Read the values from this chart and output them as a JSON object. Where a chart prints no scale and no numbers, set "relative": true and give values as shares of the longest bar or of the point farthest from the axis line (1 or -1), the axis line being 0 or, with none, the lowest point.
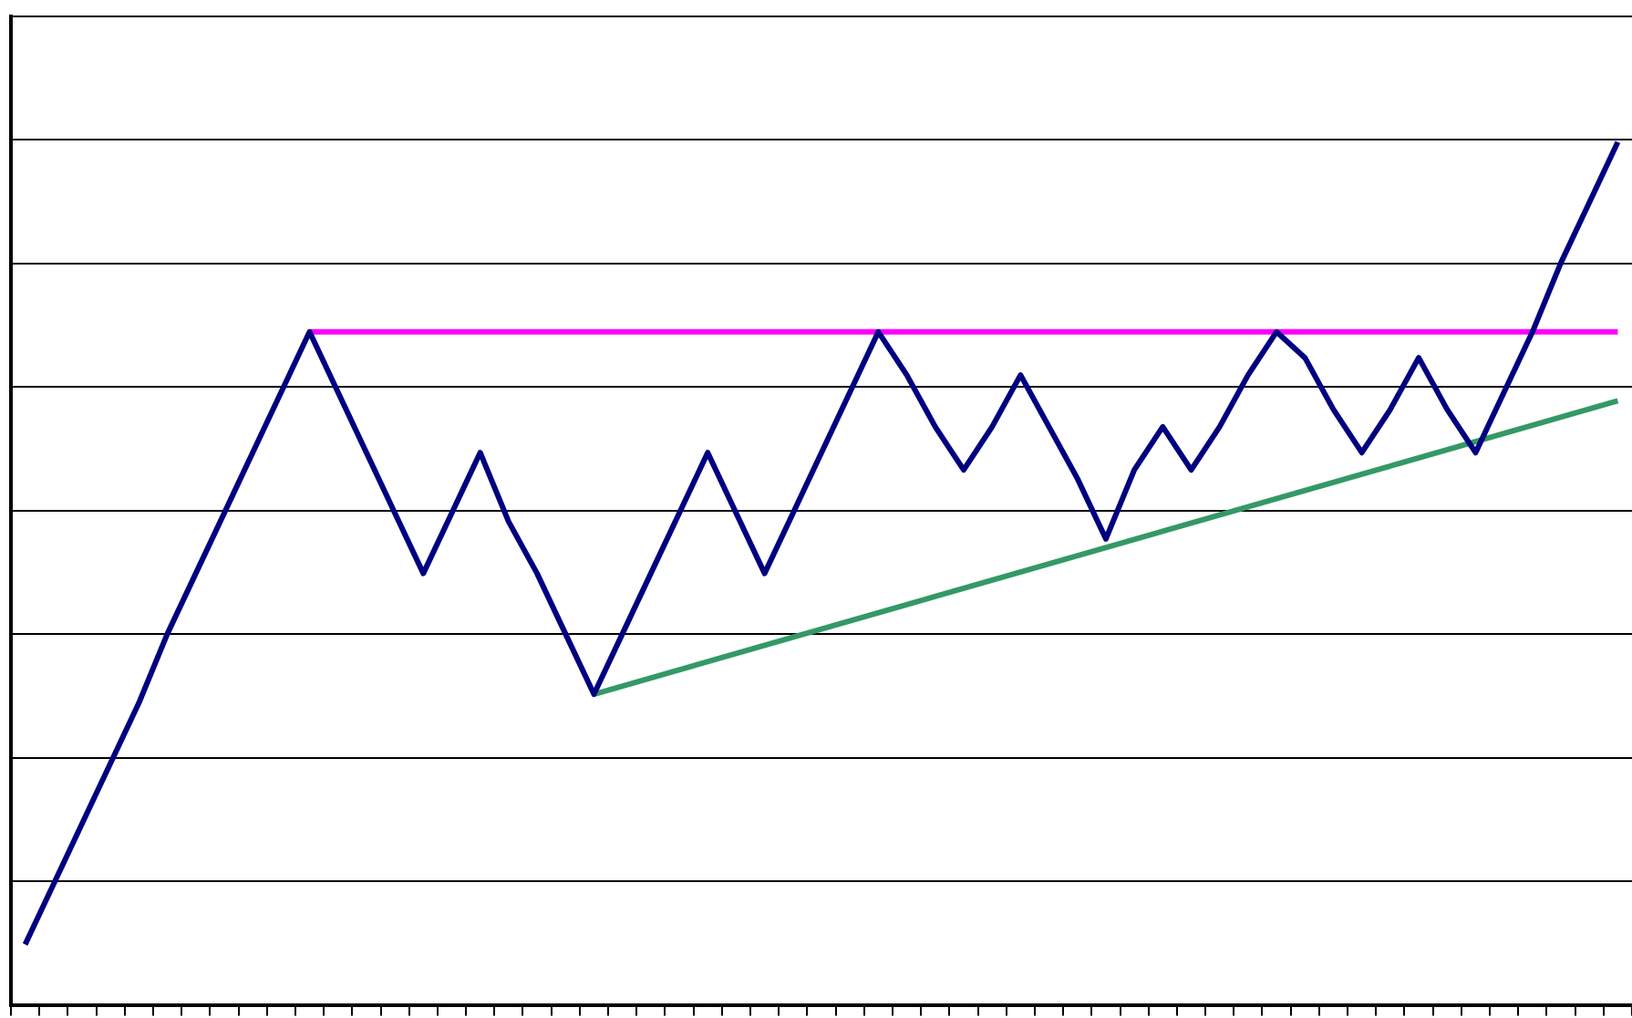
{
  "chart_data": {
    "type": "line",
    "relative": true,
    "grid": "y",
    "legend": false,
    "marker": "none",
    "line_style": "solid",
    "categories": [
      null,
      null,
      null,
      null,
      null,
      null,
      null,
      null,
      null,
      null,
      null,
      null,
      null,
      null,
      null,
      null,
      null,
      null,
      null,
      null,
      null,
      null,
      null,
      null,
      null,
      null,
      null,
      null,
      null,
      null,
      null,
      null,
      null,
      null,
      null,
      null,
      null,
      null,
      null,
      null,
      null,
      null,
      null,
      null,
      null,
      null,
      null,
      null,
      null,
      null,
      null,
      null,
      null,
      null,
      null,
      null,
      null
    ],
    "series": [
      {
        "color": "#000080",
        "values": [
          0.07,
          0.14,
          0.21,
          0.28,
          0.35,
          0.43,
          0.5,
          0.57,
          0.64,
          0.71,
          0.78,
          0.71,
          0.64,
          0.57,
          0.5,
          0.57,
          0.64,
          0.56,
          0.5,
          0.43,
          0.36,
          0.43,
          0.5,
          0.57,
          0.64,
          0.57,
          0.5,
          0.57,
          0.64,
          0.71,
          0.78,
          0.73,
          0.67,
          0.62,
          0.67,
          0.73,
          0.67,
          0.61,
          0.54,
          0.62,
          0.67,
          0.62,
          0.67,
          0.73,
          0.78,
          0.75,
          0.69,
          0.64,
          0.69,
          0.75,
          0.69,
          0.64,
          0.71,
          0.78,
          0.86,
          0.93,
          1
        ]
      },
      {
        "color": "#ff00ff",
        "values": [
          null,
          null,
          null,
          null,
          null,
          null,
          null,
          null,
          null,
          null,
          0.78,
          null,
          null,
          null,
          null,
          null,
          null,
          null,
          null,
          null,
          null,
          null,
          null,
          null,
          null,
          null,
          null,
          null,
          null,
          null,
          null,
          null,
          null,
          null,
          null,
          null,
          null,
          null,
          null,
          null,
          null,
          null,
          null,
          null,
          null,
          null,
          null,
          null,
          null,
          null,
          null,
          null,
          null,
          null,
          null,
          null,
          0.78
        ]
      },
      {
        "color": "#339966",
        "values": [
          null,
          null,
          null,
          null,
          null,
          null,
          null,
          null,
          null,
          null,
          null,
          null,
          null,
          null,
          null,
          null,
          null,
          null,
          null,
          null,
          0.36,
          null,
          null,
          null,
          null,
          null,
          null,
          null,
          null,
          null,
          null,
          null,
          null,
          null,
          null,
          null,
          null,
          null,
          null,
          null,
          null,
          null,
          null,
          null,
          null,
          null,
          null,
          null,
          null,
          null,
          null,
          null,
          null,
          null,
          null,
          null,
          0.7
        ]
      }
    ]
  }
}
